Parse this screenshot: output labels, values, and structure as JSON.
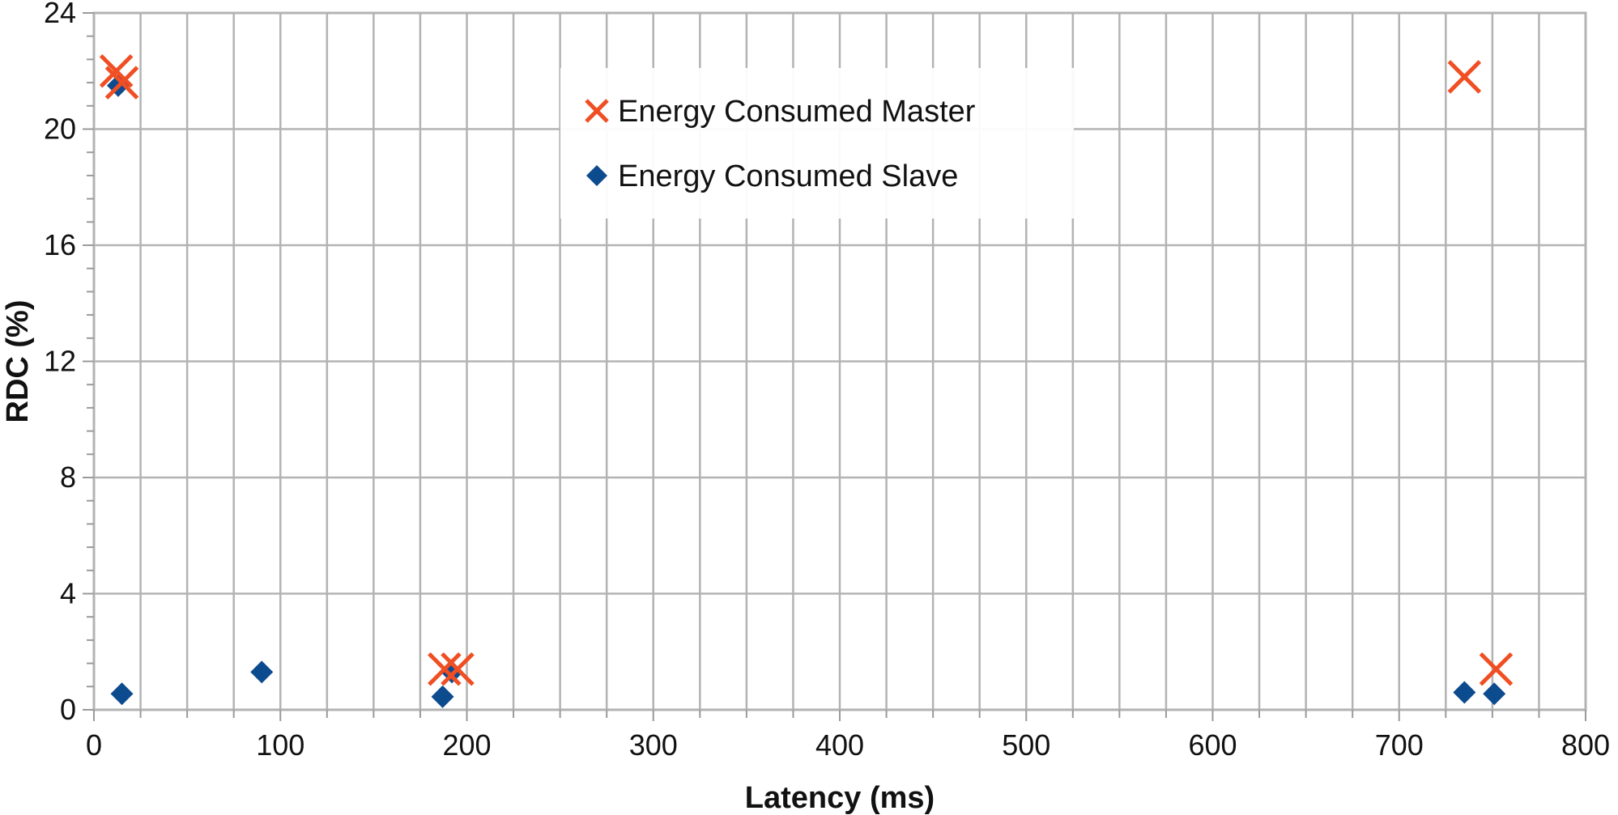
{
  "chart_data": {
    "type": "scatter",
    "title": "",
    "xlabel": "Latency (ms)",
    "ylabel": "RDC (%)",
    "xlim": [
      0,
      800
    ],
    "ylim": [
      0,
      24
    ],
    "x_ticks": [
      "0",
      "100",
      "200",
      "300",
      "400",
      "500",
      "600",
      "700",
      "800"
    ],
    "y_ticks": [
      "0",
      "4",
      "8",
      "12",
      "16",
      "20",
      "24"
    ],
    "grid": true,
    "legend_position": "top-center",
    "series": [
      {
        "name": "Energy Consumed Master",
        "marker": "x",
        "color": "#f04e23",
        "points": [
          {
            "x": 12,
            "y": 22.0
          },
          {
            "x": 15,
            "y": 21.6
          },
          {
            "x": 188,
            "y": 1.4
          },
          {
            "x": 195,
            "y": 1.4
          },
          {
            "x": 735,
            "y": 21.8
          },
          {
            "x": 752,
            "y": 1.4
          }
        ]
      },
      {
        "name": "Energy Consumed Slave",
        "marker": "diamond",
        "color": "#0d4b8f",
        "points": [
          {
            "x": 13,
            "y": 21.5
          },
          {
            "x": 15,
            "y": 0.55
          },
          {
            "x": 90,
            "y": 1.3
          },
          {
            "x": 187,
            "y": 0.45
          },
          {
            "x": 192,
            "y": 1.3
          },
          {
            "x": 735,
            "y": 0.6
          },
          {
            "x": 751,
            "y": 0.55
          }
        ]
      }
    ]
  }
}
